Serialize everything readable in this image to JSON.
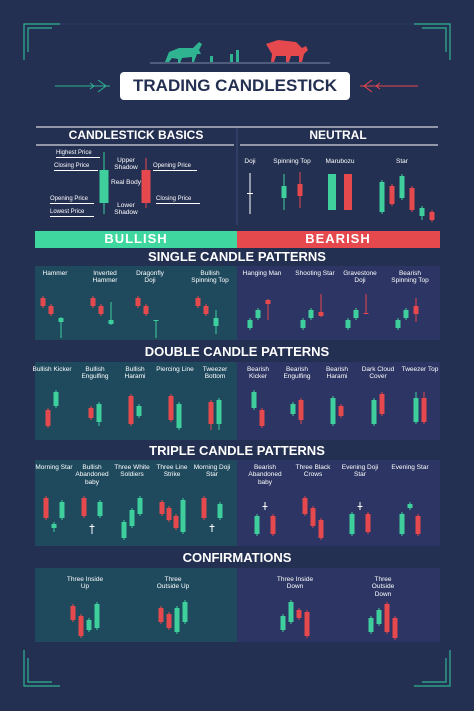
{
  "header": {
    "title": "TRADING CANDLESTICK"
  },
  "basics": {
    "title": "CANDLESTICK BASICS",
    "labels": [
      "Highest Price",
      "Closing Price",
      "Opening Price",
      "Lowest Price",
      "Upper Shadow",
      "Real Body",
      "Lower Shadow",
      "Opening Price",
      "Closing Price"
    ]
  },
  "neutral": {
    "title": "NEUTRAL",
    "patterns": [
      "Doji",
      "Spinning Top",
      "Marubozu",
      "Star"
    ]
  },
  "sides": {
    "bullish": "BULLISH",
    "bearish": "BEARISH"
  },
  "sections": [
    {
      "title": "SINGLE CANDLE PATTERNS",
      "bullish": [
        "Hammer",
        "Inverted Hammer",
        "Dragonfly Doji",
        "Bullish Spinning Top"
      ],
      "bearish": [
        "Hanging Man",
        "Shooting Star",
        "Gravestone Doji",
        "Bearish Spinning Top"
      ]
    },
    {
      "title": "DOUBLE CANDLE PATTERNS",
      "bullish": [
        "Bullish Kicker",
        "Bullish Engulfing",
        "Bullish Harami",
        "Piercing Line",
        "Tweezer Bottom"
      ],
      "bearish": [
        "Bearish Kicker",
        "Bearish Engulfing",
        "Bearish Harami",
        "Dark Cloud Cover",
        "Tweezer Top"
      ]
    },
    {
      "title": "TRIPLE CANDLE PATTERNS",
      "bullish": [
        "Morning Star",
        "Bullish Abandoned baby",
        "Three White Soldiers",
        "Three Line Strike",
        "Morning Doji Star"
      ],
      "bearish": [
        "Bearish Abandoned baby",
        "Three Black Crows",
        "Evening Doji Star",
        "Evening Star"
      ]
    },
    {
      "title": "CONFIRMATIONS",
      "bullish": [
        "Three Inside Up",
        "Three Outside Up"
      ],
      "bearish": [
        "Three Inside Down",
        "Three Outside Down"
      ]
    }
  ]
}
